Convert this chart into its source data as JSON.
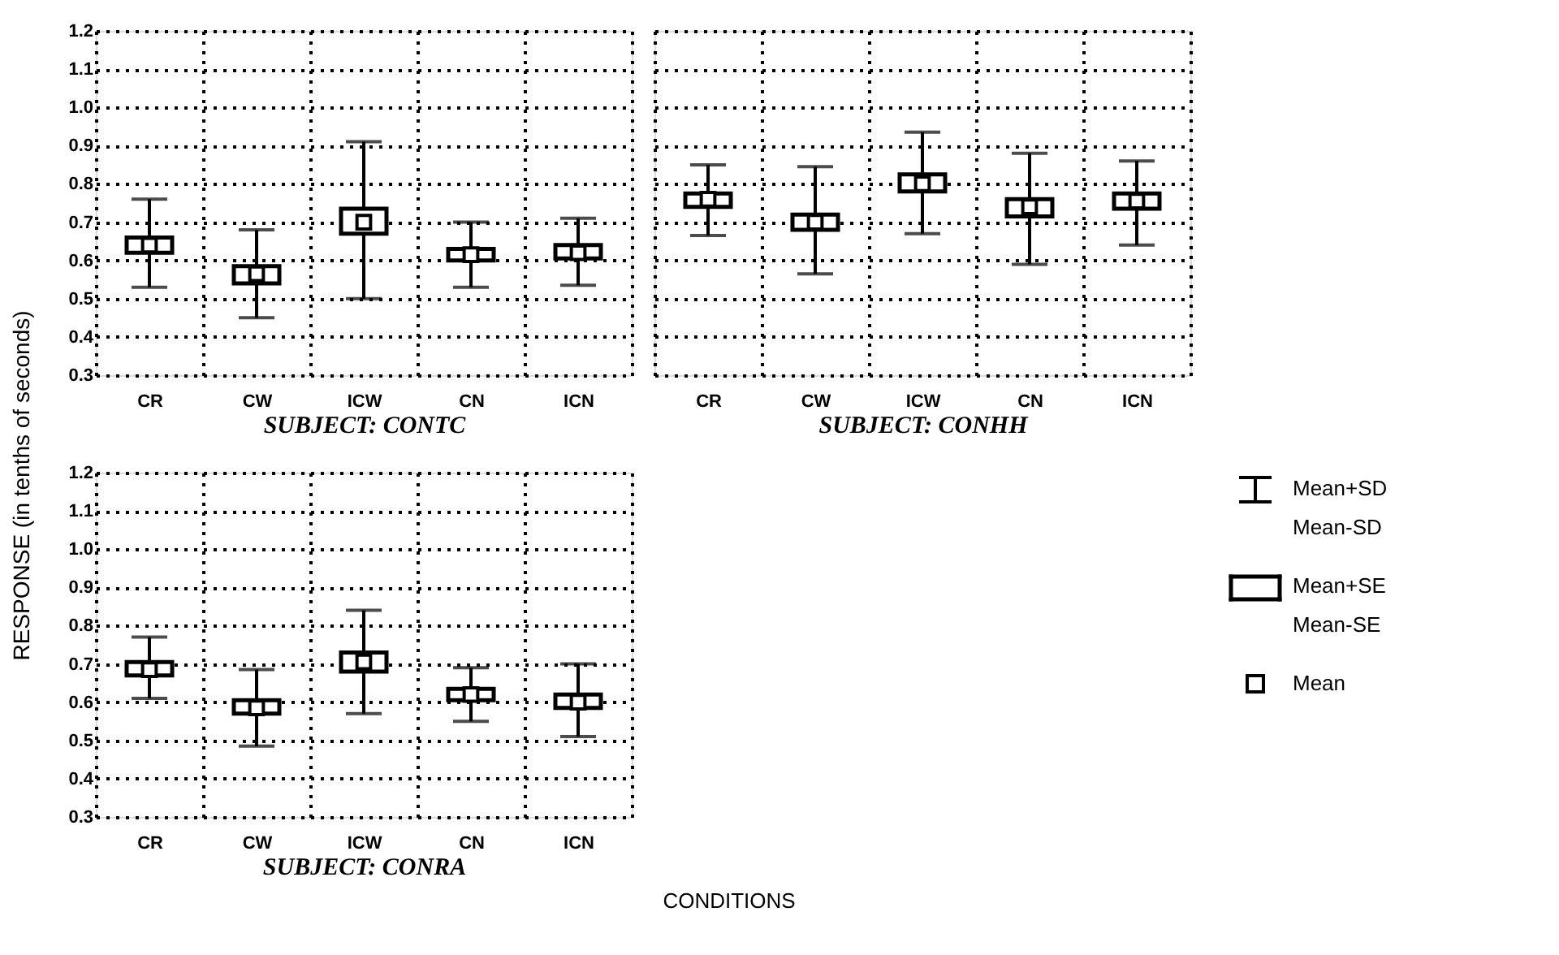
{
  "chart_data": [
    {
      "type": "box",
      "xlabel": "SUBJECT: CONTC",
      "ylabel": "RESPONSE (in tenths of seconds)",
      "categories": [
        "CR",
        "CW",
        "ICW",
        "CN",
        "ICN"
      ],
      "boxes": [
        {
          "low": 0.53,
          "q1": 0.62,
          "median": 0.64,
          "q3": 0.66,
          "high": 0.76
        },
        {
          "low": 0.45,
          "q1": 0.54,
          "median": 0.565,
          "q3": 0.585,
          "high": 0.68
        },
        {
          "low": 0.5,
          "q1": 0.67,
          "median": 0.7,
          "q3": 0.735,
          "high": 0.91
        },
        {
          "low": 0.53,
          "q1": 0.6,
          "median": 0.615,
          "q3": 0.63,
          "high": 0.7
        },
        {
          "low": 0.535,
          "q1": 0.605,
          "median": 0.62,
          "q3": 0.64,
          "high": 0.71
        }
      ],
      "ylim": [
        0.3,
        1.2
      ],
      "yticks": [
        0.3,
        0.4,
        0.5,
        0.6,
        0.7,
        0.8,
        0.9,
        {
          "value": 1.0,
          "label": "1.0"
        },
        1.1,
        1.2
      ],
      "grid": true
    },
    {
      "type": "box",
      "xlabel": "SUBJECT: CONHH",
      "categories": [
        "CR",
        "CW",
        "ICW",
        "CN",
        "ICN"
      ],
      "boxes": [
        {
          "low": 0.665,
          "q1": 0.74,
          "median": 0.76,
          "q3": 0.775,
          "high": 0.85
        },
        {
          "low": 0.565,
          "q1": 0.68,
          "median": 0.7,
          "q3": 0.72,
          "high": 0.845
        },
        {
          "low": 0.67,
          "q1": 0.78,
          "median": 0.8,
          "q3": 0.825,
          "high": 0.935
        },
        {
          "low": 0.59,
          "q1": 0.715,
          "median": 0.74,
          "q3": 0.76,
          "high": 0.88
        },
        {
          "low": 0.64,
          "q1": 0.735,
          "median": 0.755,
          "q3": 0.775,
          "high": 0.86
        }
      ],
      "ylim": [
        0.3,
        1.2
      ],
      "yticks": [
        0.3,
        0.4,
        0.5,
        0.6,
        0.7,
        0.8,
        0.9,
        1.0,
        1.1,
        1.2
      ],
      "grid": true,
      "tick_labels": "x"
    },
    {
      "type": "box",
      "xlabel": "SUBJECT: CONRA",
      "categories": [
        "CR",
        "CW",
        "ICW",
        "CN",
        "ICN"
      ],
      "boxes": [
        {
          "low": 0.61,
          "q1": 0.67,
          "median": 0.685,
          "q3": 0.705,
          "high": 0.77
        },
        {
          "low": 0.485,
          "q1": 0.57,
          "median": 0.585,
          "q3": 0.605,
          "high": 0.685
        },
        {
          "low": 0.57,
          "q1": 0.68,
          "median": 0.705,
          "q3": 0.73,
          "high": 0.84
        },
        {
          "low": 0.55,
          "q1": 0.605,
          "median": 0.62,
          "q3": 0.635,
          "high": 0.69
        },
        {
          "low": 0.51,
          "q1": 0.585,
          "median": 0.6,
          "q3": 0.62,
          "high": 0.7
        }
      ],
      "ylim": [
        0.3,
        1.2
      ],
      "yticks": [
        0.3,
        0.4,
        0.5,
        0.6,
        0.7,
        0.8,
        0.9,
        {
          "value": 1.0,
          "label": "1.0"
        },
        1.1,
        1.2
      ],
      "grid": true,
      "annotations": [
        "Mean+SD",
        "Mean-SD",
        "Mean+SE",
        "Mean-SE",
        "Mean",
        "CONDITIONS"
      ]
    }
  ]
}
